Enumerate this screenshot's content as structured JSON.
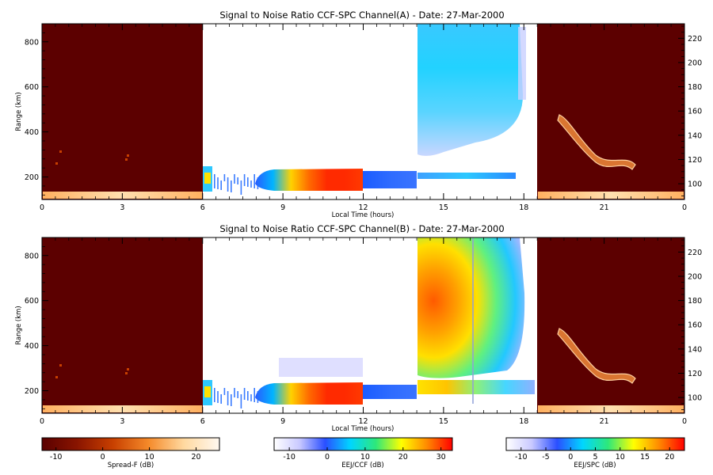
{
  "chart_data": [
    {
      "type": "heatmap",
      "title": "Signal to Noise Ratio CCF-SPC Channel(A) - Date: 27-Mar-2000",
      "xlabel": "Local Time (hours)",
      "ylabel": "Range (km)",
      "x_tick_labels": [
        "0",
        "3",
        "6",
        "9",
        "12",
        "15",
        "18",
        "21",
        "0"
      ],
      "y_tick_labels": [
        "200",
        "400",
        "600",
        "800"
      ],
      "y2_tick_labels": [
        "100",
        "120",
        "140",
        "160",
        "180",
        "200",
        "220"
      ],
      "x_segments": [
        {
          "name": "Spread-F",
          "x_range_hours": [
            0,
            6
          ],
          "y_range_km": [
            100,
            880
          ]
        },
        {
          "name": "EEJ/CCF",
          "x_range_hours": [
            6,
            14
          ],
          "y_range_km": [
            100,
            880
          ]
        },
        {
          "name": "EEJ/SPC",
          "x_range_hours": [
            14,
            18.5
          ],
          "y_range_km": [
            100,
            880
          ]
        },
        {
          "name": "Spread-F",
          "x_range_hours": [
            18.5,
            24
          ],
          "y_range_km": [
            100,
            880
          ]
        }
      ]
    },
    {
      "type": "heatmap",
      "title": "Signal to Noise Ratio CCF-SPC Channel(B) - Date: 27-Mar-2000",
      "xlabel": "Local Time (hours)",
      "ylabel": "Range (km)",
      "x_tick_labels": [
        "0",
        "3",
        "6",
        "9",
        "12",
        "15",
        "18",
        "21",
        "0"
      ],
      "y_tick_labels": [
        "200",
        "400",
        "600",
        "800"
      ],
      "y2_tick_labels": [
        "100",
        "120",
        "140",
        "160",
        "180",
        "200",
        "220"
      ],
      "x_segments": [
        {
          "name": "Spread-F",
          "x_range_hours": [
            0,
            6
          ],
          "y_range_km": [
            100,
            880
          ]
        },
        {
          "name": "EEJ/CCF",
          "x_range_hours": [
            6,
            14
          ],
          "y_range_km": [
            100,
            880
          ]
        },
        {
          "name": "EEJ/SPC",
          "x_range_hours": [
            14,
            18.5
          ],
          "y_range_km": [
            100,
            880
          ]
        },
        {
          "name": "Spread-F",
          "x_range_hours": [
            18.5,
            24
          ],
          "y_range_km": [
            100,
            880
          ]
        }
      ]
    }
  ],
  "colorbars": [
    {
      "label": "Spread-F (dB)",
      "range": [
        -13,
        25
      ],
      "tick_labels": [
        "-10",
        "0",
        "10",
        "20"
      ],
      "tick_values": [
        -10,
        0,
        10,
        20
      ],
      "colors": [
        "#5a0000",
        "#8a1500",
        "#c84000",
        "#f58a2a",
        "#ffd9a0",
        "#fff8f0"
      ]
    },
    {
      "label": "EEJ/CCF (dB)",
      "range": [
        -14,
        33
      ],
      "tick_labels": [
        "-10",
        "0",
        "10",
        "20",
        "30"
      ],
      "tick_values": [
        -10,
        0,
        10,
        20,
        30
      ],
      "colors": [
        "#ffffff",
        "#c9c9ff",
        "#2a4fff",
        "#00d6ff",
        "#2ee87a",
        "#ffff00",
        "#ff8a00",
        "#ff0000"
      ]
    },
    {
      "label": "EEJ/SPC (dB)",
      "range": [
        -13,
        23
      ],
      "tick_labels": [
        "-10",
        "-5",
        "0",
        "5",
        "10",
        "15",
        "20"
      ],
      "tick_values": [
        -10,
        -5,
        0,
        5,
        10,
        15,
        20
      ],
      "colors": [
        "#ffffff",
        "#c9c9ff",
        "#2a4fff",
        "#00d6ff",
        "#2ee87a",
        "#ffff00",
        "#ff8a00",
        "#ff0000"
      ]
    }
  ]
}
